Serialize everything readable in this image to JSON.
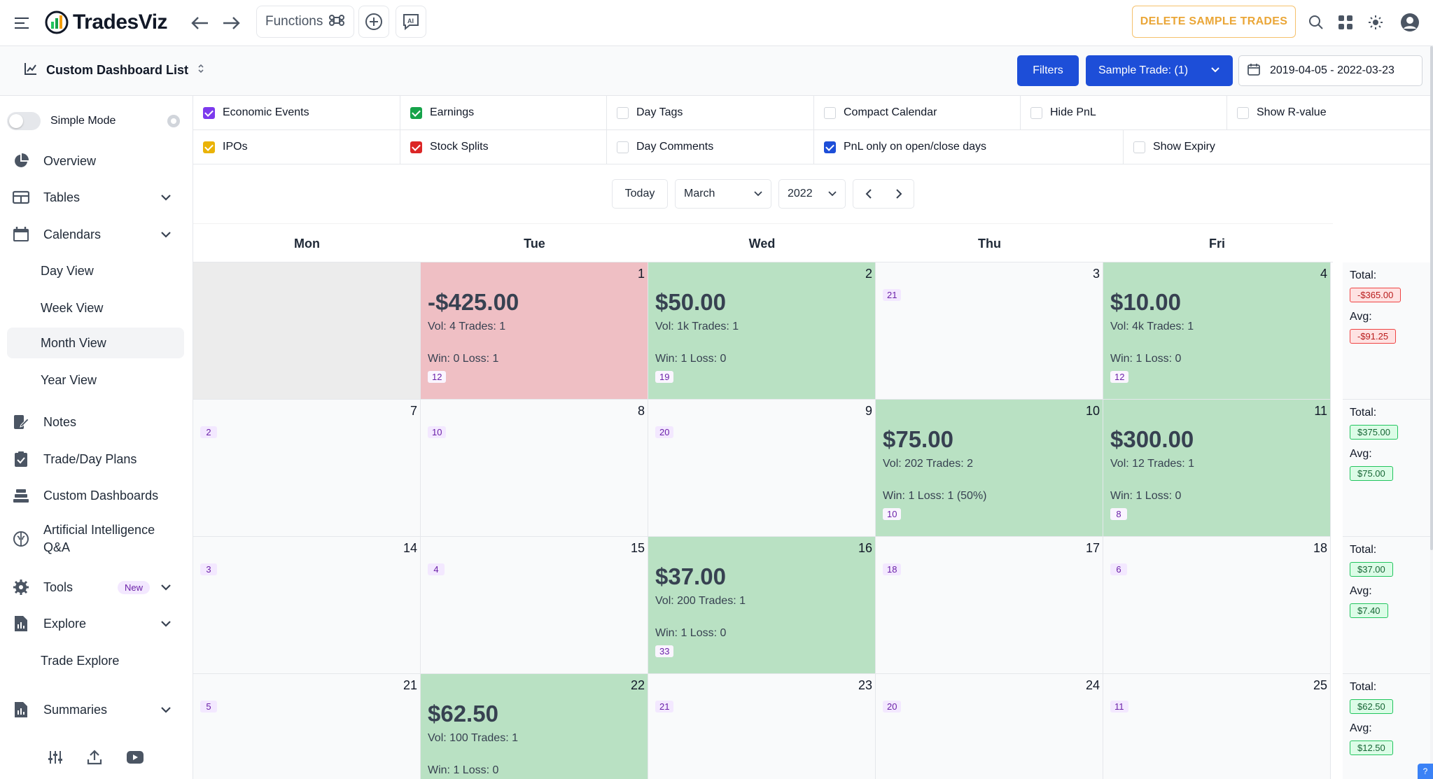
{
  "app": {
    "logo_text": "TradesViz",
    "functions_label": "Functions",
    "delete_sample_label": "DELETE SAMPLE TRADES"
  },
  "subbar": {
    "dashboard_title": "Custom Dashboard List",
    "filters_label": "Filters",
    "sample_trades_label": "Sample Trade: (1)",
    "date_range": "2019-04-05 - 2022-03-23"
  },
  "sidebar": {
    "simple_mode_label": "Simple Mode",
    "items": {
      "overview": "Overview",
      "tables": "Tables",
      "calendars": "Calendars",
      "day_view": "Day View",
      "week_view": "Week View",
      "month_view": "Month View",
      "year_view": "Year View",
      "notes": "Notes",
      "trade_day_plans": "Trade/Day Plans",
      "custom_dashboards": "Custom Dashboards",
      "ai_qa_line1": "Artificial Intelligence",
      "ai_qa_line2": "Q&A",
      "tools": "Tools",
      "tools_badge": "New",
      "explore": "Explore",
      "trade_explore": "Trade Explore",
      "summaries": "Summaries"
    }
  },
  "options": [
    {
      "label": "Economic Events",
      "checked": true,
      "color": "#7c3aed"
    },
    {
      "label": "Earnings",
      "checked": true,
      "color": "#16a34a"
    },
    {
      "label": "Day Tags",
      "checked": false,
      "color": ""
    },
    {
      "label": "Compact Calendar",
      "checked": false,
      "color": ""
    },
    {
      "label": "Hide PnL",
      "checked": false,
      "color": ""
    },
    {
      "label": "Show R-value",
      "checked": false,
      "color": ""
    },
    {
      "label": "IPOs",
      "checked": true,
      "color": "#eab308"
    },
    {
      "label": "Stock Splits",
      "checked": true,
      "color": "#dc2626"
    },
    {
      "label": "Day Comments",
      "checked": false,
      "color": ""
    },
    {
      "label": "PnL only on open/close days",
      "checked": true,
      "color": "#1d4ed8"
    },
    {
      "label": "Show Expiry",
      "checked": false,
      "color": ""
    }
  ],
  "calendar_controls": {
    "today_label": "Today",
    "month": "March",
    "year": "2022"
  },
  "weekdays": [
    "Mon",
    "Tue",
    "Wed",
    "Thu",
    "Fri"
  ],
  "weeks": [
    {
      "days": [
        {
          "num": "",
          "empty": true
        },
        {
          "num": "1",
          "status": "red",
          "pnl": "-$425.00",
          "vol": "Vol: 4 Trades: 1",
          "wl": "Win: 0 Loss: 1",
          "tag": "12"
        },
        {
          "num": "2",
          "status": "green",
          "pnl": "$50.00",
          "vol": "Vol: 1k Trades: 1",
          "wl": "Win: 1 Loss: 0",
          "tag": "19"
        },
        {
          "num": "3",
          "status": "none",
          "tag": "21"
        },
        {
          "num": "4",
          "status": "green",
          "pnl": "$10.00",
          "vol": "Vol: 4k Trades: 1",
          "wl": "Win: 1 Loss: 0",
          "tag": "12"
        }
      ],
      "total_label": "Total:",
      "total": "-$365.00",
      "avg_label": "Avg:",
      "avg": "-$91.25",
      "sign": "neg"
    },
    {
      "days": [
        {
          "num": "7",
          "status": "none",
          "tag": "2"
        },
        {
          "num": "8",
          "status": "none",
          "tag": "10"
        },
        {
          "num": "9",
          "status": "none",
          "tag": "20"
        },
        {
          "num": "10",
          "status": "green",
          "pnl": "$75.00",
          "vol": "Vol: 202 Trades: 2",
          "wl": "Win: 1 Loss: 1 (50%)",
          "tag": "10"
        },
        {
          "num": "11",
          "status": "green",
          "pnl": "$300.00",
          "vol": "Vol: 12 Trades: 1",
          "wl": "Win: 1 Loss: 0",
          "tag": "8"
        }
      ],
      "total_label": "Total:",
      "total": "$375.00",
      "avg_label": "Avg:",
      "avg": "$75.00",
      "sign": "pos"
    },
    {
      "days": [
        {
          "num": "14",
          "status": "none",
          "tag": "3"
        },
        {
          "num": "15",
          "status": "none",
          "tag": "4"
        },
        {
          "num": "16",
          "status": "green",
          "pnl": "$37.00",
          "vol": "Vol: 200 Trades: 1",
          "wl": "Win: 1 Loss: 0",
          "tag": "33"
        },
        {
          "num": "17",
          "status": "none",
          "tag": "18"
        },
        {
          "num": "18",
          "status": "none",
          "tag": "6"
        }
      ],
      "total_label": "Total:",
      "total": "$37.00",
      "avg_label": "Avg:",
      "avg": "$7.40",
      "sign": "pos"
    },
    {
      "days": [
        {
          "num": "21",
          "status": "none",
          "tag": "5"
        },
        {
          "num": "22",
          "status": "green",
          "pnl": "$62.50",
          "vol": "Vol: 100 Trades: 1",
          "wl": "Win: 1 Loss: 0",
          "tag": ""
        },
        {
          "num": "23",
          "status": "none",
          "tag": "21"
        },
        {
          "num": "24",
          "status": "none",
          "tag": "20"
        },
        {
          "num": "25",
          "status": "none",
          "tag": "11"
        }
      ],
      "total_label": "Total:",
      "total": "$62.50",
      "avg_label": "Avg:",
      "avg": "$12.50",
      "sign": "pos"
    }
  ]
}
